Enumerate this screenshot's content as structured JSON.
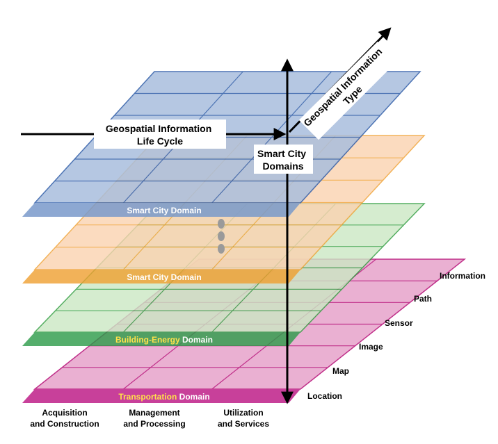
{
  "lifecycle_axis": {
    "lines": [
      "Geospatial Information",
      "Life Cycle"
    ]
  },
  "type_axis": {
    "lines": [
      "Geospatial Information",
      "Type"
    ]
  },
  "domain_axis": {
    "lines": [
      "Smart City",
      "Domains"
    ]
  },
  "layers": [
    {
      "label": "Smart City Domain"
    },
    {
      "label": "Smart City Domain"
    },
    {
      "highlight": "Building-Energy",
      "label": "Domain"
    },
    {
      "highlight": "Transportation",
      "label": "Domain"
    }
  ],
  "types": [
    "Location",
    "Map",
    "Image",
    "Sensor",
    "Path",
    "Information"
  ],
  "stages": [
    {
      "lines": [
        "Acquisition",
        "and Construction"
      ]
    },
    {
      "lines": [
        "Management",
        "and Processing"
      ]
    },
    {
      "lines": [
        "Utilization",
        "and Services"
      ]
    }
  ]
}
